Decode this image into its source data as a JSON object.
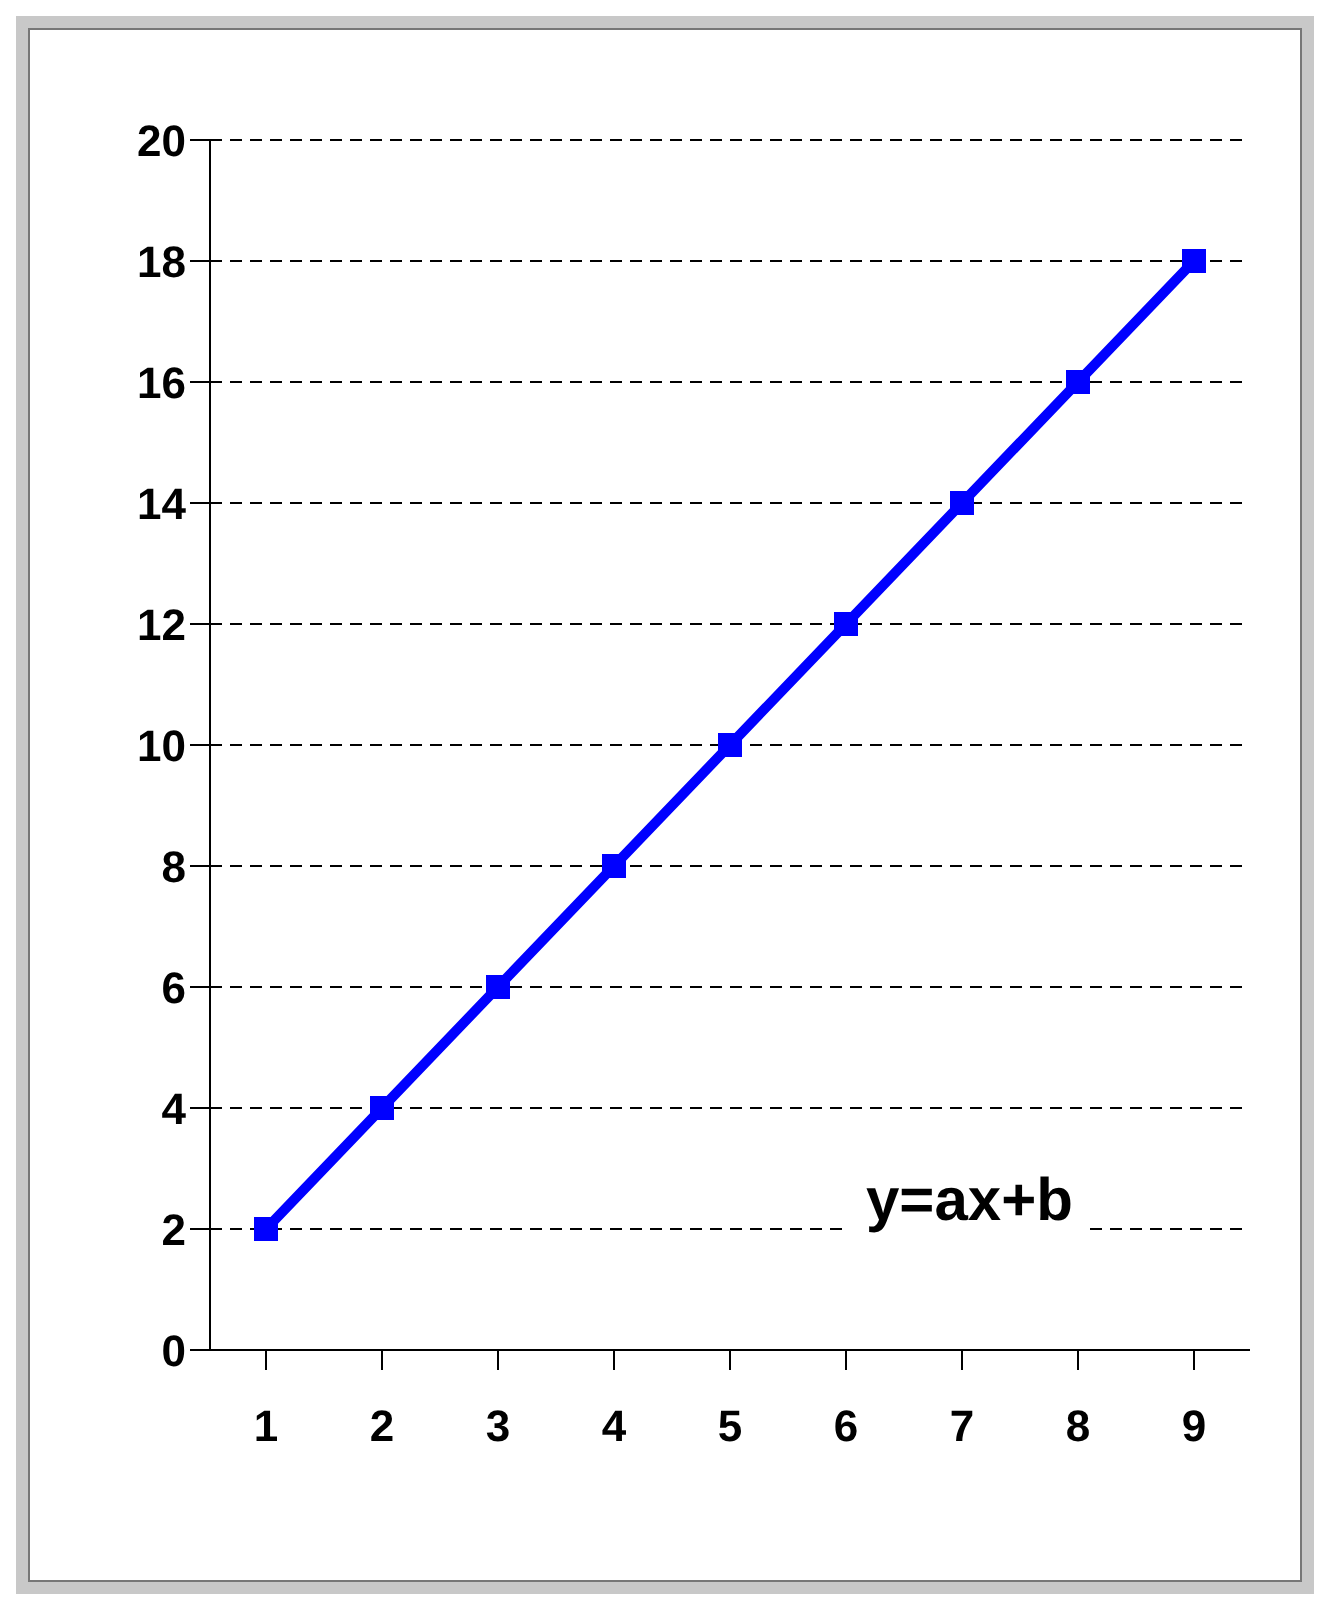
{
  "chart_data": {
    "type": "line",
    "categories": [
      "1",
      "2",
      "3",
      "4",
      "5",
      "6",
      "7",
      "8",
      "9"
    ],
    "series": [
      {
        "color": "#0000ff",
        "values": [
          2,
          4,
          6,
          8,
          10,
          12,
          14,
          16,
          18
        ]
      }
    ],
    "ylim": [
      0,
      20
    ],
    "yticks": [
      0,
      2,
      4,
      6,
      8,
      10,
      12,
      14,
      16,
      18,
      20
    ],
    "grid": "y",
    "marker": "square",
    "line_style": "solid",
    "legend": false,
    "annotations": [
      "y=ax+b"
    ]
  }
}
